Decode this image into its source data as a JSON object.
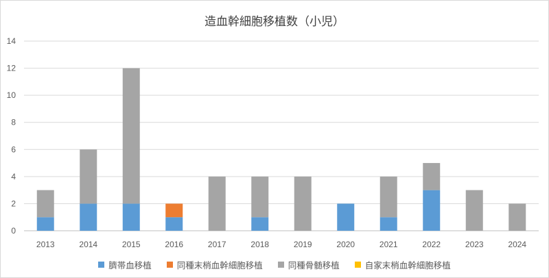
{
  "chart_data": {
    "type": "bar",
    "stacked": true,
    "title": "造血幹細胞移植数（小児）",
    "xlabel": "",
    "ylabel": "",
    "categories": [
      "2013",
      "2014",
      "2015",
      "2016",
      "2017",
      "2018",
      "2019",
      "2020",
      "2021",
      "2022",
      "2023",
      "2024"
    ],
    "ylim": [
      0,
      14
    ],
    "yticks": [
      "0",
      "2",
      "4",
      "6",
      "8",
      "10",
      "12",
      "14"
    ],
    "grid": true,
    "legend_position": "bottom",
    "series": [
      {
        "name": "臍帯血移植",
        "color": "#5b9bd5",
        "values": [
          1,
          2,
          2,
          1,
          0,
          1,
          0,
          2,
          1,
          3,
          0,
          0
        ]
      },
      {
        "name": "同種末梢血幹細胞移植",
        "color": "#ed7d31",
        "values": [
          0,
          0,
          0,
          1,
          0,
          0,
          0,
          0,
          0,
          0,
          0,
          0
        ]
      },
      {
        "name": "同種骨髄移植",
        "color": "#a5a5a5",
        "values": [
          2,
          4,
          10,
          0,
          4,
          3,
          4,
          0,
          3,
          2,
          3,
          2
        ]
      },
      {
        "name": "自家末梢血幹細胞移植",
        "color": "#ffc000",
        "values": [
          0,
          0,
          0,
          0,
          0,
          0,
          0,
          0,
          0,
          0,
          0,
          0
        ]
      }
    ]
  }
}
